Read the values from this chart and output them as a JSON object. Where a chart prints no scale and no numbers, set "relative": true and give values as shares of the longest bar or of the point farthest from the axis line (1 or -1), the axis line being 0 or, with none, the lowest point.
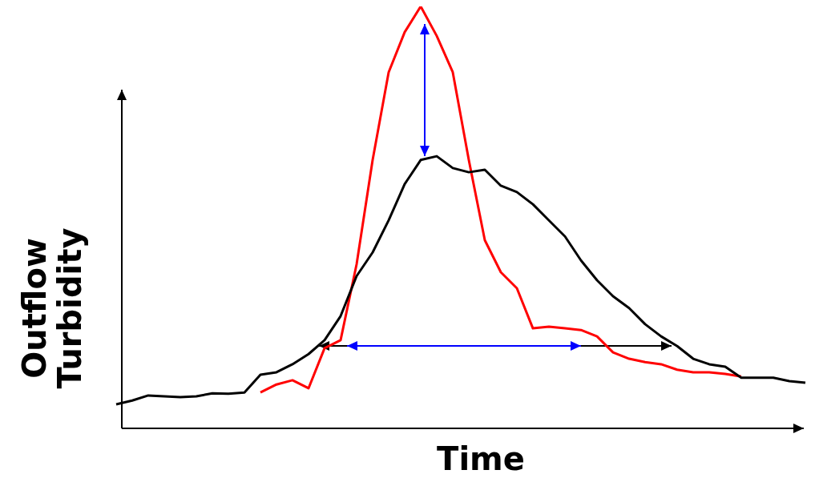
{
  "chart_data": {
    "type": "line",
    "relative": true,
    "xlabel": "Time",
    "ylabel": "Outflow Turbidity",
    "legend": false,
    "marker": "none",
    "line_style": "solid",
    "categories": [
      null,
      null,
      null,
      null,
      null,
      null,
      null,
      null,
      null,
      null,
      null,
      null,
      null,
      null,
      null,
      null,
      null,
      null,
      null,
      null,
      null,
      null,
      null,
      null,
      null,
      null,
      null,
      null,
      null,
      null,
      null,
      null,
      null,
      null,
      null,
      null,
      null,
      null,
      null,
      null,
      null,
      null,
      null,
      null
    ],
    "series": [
      {
        "color": "#000000",
        "values": [
          0.057,
          0.066,
          0.078,
          0.076,
          0.074,
          0.076,
          0.083,
          0.082,
          0.085,
          0.127,
          0.133,
          0.152,
          0.176,
          0.209,
          0.266,
          0.361,
          0.417,
          0.493,
          0.579,
          0.636,
          0.645,
          0.617,
          0.607,
          0.613,
          0.575,
          0.56,
          0.531,
          0.493,
          0.455,
          0.398,
          0.351,
          0.313,
          0.285,
          0.247,
          0.218,
          0.195,
          0.165,
          0.152,
          0.146,
          0.12,
          0.12,
          0.12,
          0.112,
          0.108
        ]
      },
      {
        "color": "#ff0000",
        "values": [
          null,
          null,
          null,
          null,
          null,
          null,
          null,
          null,
          null,
          0.085,
          0.104,
          0.114,
          0.095,
          0.19,
          0.209,
          0.389,
          0.636,
          0.844,
          0.939,
          1,
          0.93,
          0.844,
          0.636,
          0.446,
          0.37,
          0.332,
          0.237,
          0.241,
          0.237,
          0.233,
          0.218,
          0.18,
          0.165,
          0.157,
          0.152,
          0.139,
          0.133,
          0.133,
          0.129,
          0.123,
          null,
          null,
          null,
          null
        ]
      }
    ]
  }
}
